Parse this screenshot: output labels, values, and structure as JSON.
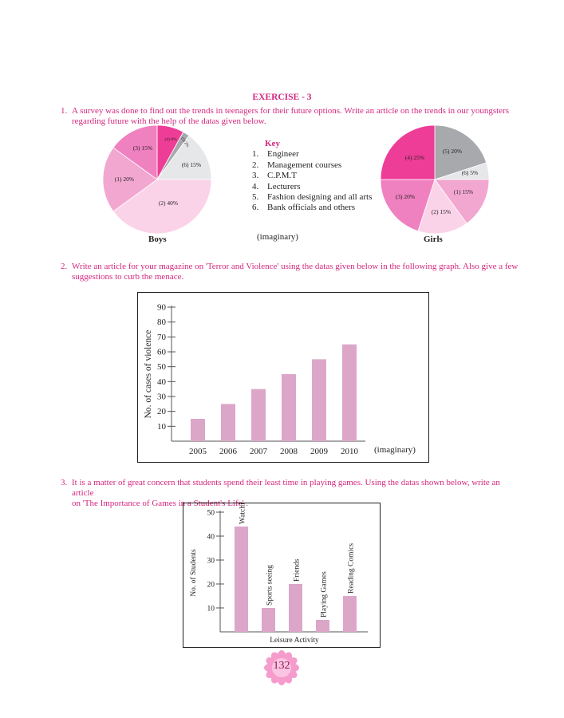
{
  "exercise_title": "EXERCISE - 3",
  "q1": {
    "number": "1.",
    "line1": "A survey was done to find out the trends in teenagers for their future options. Write an article on the trends in our youngsters",
    "line2": "regarding future with the help of the datas given below.",
    "key_title": "Key",
    "key_items": [
      {
        "n": "1.",
        "label": "Engineer"
      },
      {
        "n": "2.",
        "label": "Management courses"
      },
      {
        "n": "3.",
        "label": "C.P.M.T"
      },
      {
        "n": "4.",
        "label": "Lecturers"
      },
      {
        "n": "5.",
        "label": "Fashion designing and  all arts"
      },
      {
        "n": "6.",
        "label": "Bank officials and others"
      }
    ],
    "note": "(imaginary)",
    "boys_label": "Boys",
    "girls_label": "Girls"
  },
  "q2": {
    "number": "2.",
    "line1": "Write an article for your magazine on 'Terror and Violence' using the datas given below in the following graph. Also give a few",
    "line2": "suggestions to curb the menace.",
    "note": "(imaginary)"
  },
  "q3": {
    "number": "3.",
    "line1": "It is a matter of great concern that students spend their least time in playing games. Using the datas shown below, write an article",
    "line2": "on 'The Importance of Games in a Student's Life' ."
  },
  "page_number": "132",
  "colors": {
    "magenta": "#d4277f",
    "bar": "#dca6c9",
    "slice1": "#f2a7d1",
    "slice2": "#fbd3e8",
    "slice3": "#f081c0",
    "slice4": "#ee3d96",
    "slice5": "#a7a9ac",
    "slice6": "#e6e7e8"
  },
  "chart_data": [
    {
      "type": "pie",
      "title": "Boys",
      "slices": [
        {
          "label": "(1) 20%",
          "category": 1,
          "value": 20
        },
        {
          "label": "(2) 40%",
          "category": 2,
          "value": 40
        },
        {
          "label": "(3) 15%",
          "category": 3,
          "value": 15
        },
        {
          "label": "(4) 8%",
          "category": 4,
          "value": 8
        },
        {
          "label": "(5) 2%",
          "category": 5,
          "value": 2
        },
        {
          "label": "(6) 15%",
          "category": 6,
          "value": 15
        }
      ]
    },
    {
      "type": "pie",
      "title": "Girls",
      "slices": [
        {
          "label": "(1) 15%",
          "category": 1,
          "value": 15
        },
        {
          "label": "(2) 15%",
          "category": 2,
          "value": 15
        },
        {
          "label": "(3) 20%",
          "category": 3,
          "value": 20
        },
        {
          "label": "(4) 25%",
          "category": 4,
          "value": 25
        },
        {
          "label": "(5) 20%",
          "category": 5,
          "value": 20
        },
        {
          "label": "(6) 5%",
          "category": 6,
          "value": 5
        }
      ]
    },
    {
      "type": "bar",
      "categories": [
        "2005",
        "2006",
        "2007",
        "2008",
        "2009",
        "2010"
      ],
      "values": [
        15,
        25,
        35,
        45,
        55,
        65
      ],
      "ylabel": "No. of cases of violence",
      "xlabel": "",
      "yticks": [
        10,
        20,
        30,
        40,
        50,
        60,
        70,
        80,
        90
      ],
      "ylim": [
        0,
        90
      ]
    },
    {
      "type": "bar",
      "categories": [
        "Watching movies, songs",
        "Sports seeing",
        "Friends",
        "Playing Games",
        "Reading Comics"
      ],
      "values": [
        44,
        10,
        20,
        5,
        15
      ],
      "ylabel": "No. of Students",
      "xlabel": "Leisure Activity",
      "yticks": [
        10,
        20,
        30,
        40,
        50
      ],
      "ylim": [
        0,
        50
      ]
    }
  ]
}
